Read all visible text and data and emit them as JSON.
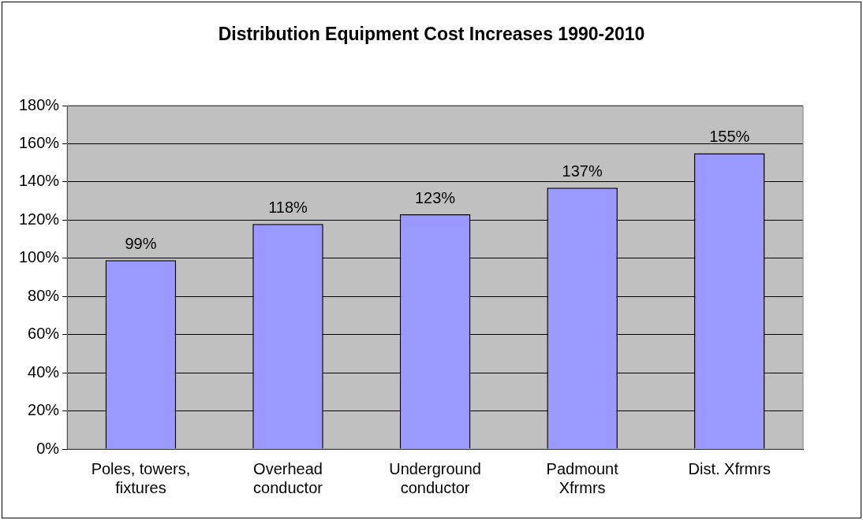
{
  "chart_data": {
    "type": "bar",
    "title": "Distribution Equipment Cost Increases 1990-2010",
    "categories": [
      "Poles, towers, fixtures",
      "Overhead conductor",
      "Underground conductor",
      "Padmount Xfrmrs",
      "Dist. Xfrmrs"
    ],
    "values": [
      99,
      118,
      123,
      137,
      155
    ],
    "value_labels": [
      "99%",
      "118%",
      "123%",
      "137%",
      "155%"
    ],
    "color": "#9999ff",
    "ylim": [
      0,
      180
    ],
    "yticks": [
      {
        "value": 0,
        "label": "0%"
      },
      {
        "value": 20,
        "label": "20%"
      },
      {
        "value": 40,
        "label": "40%"
      },
      {
        "value": 60,
        "label": "60%"
      },
      {
        "value": 80,
        "label": "80%"
      },
      {
        "value": 100,
        "label": "100%"
      },
      {
        "value": 120,
        "label": "120%"
      },
      {
        "value": 140,
        "label": "140%"
      },
      {
        "value": 160,
        "label": "160%"
      },
      {
        "value": 180,
        "label": "180%"
      }
    ],
    "grid": "y",
    "legend": false
  }
}
